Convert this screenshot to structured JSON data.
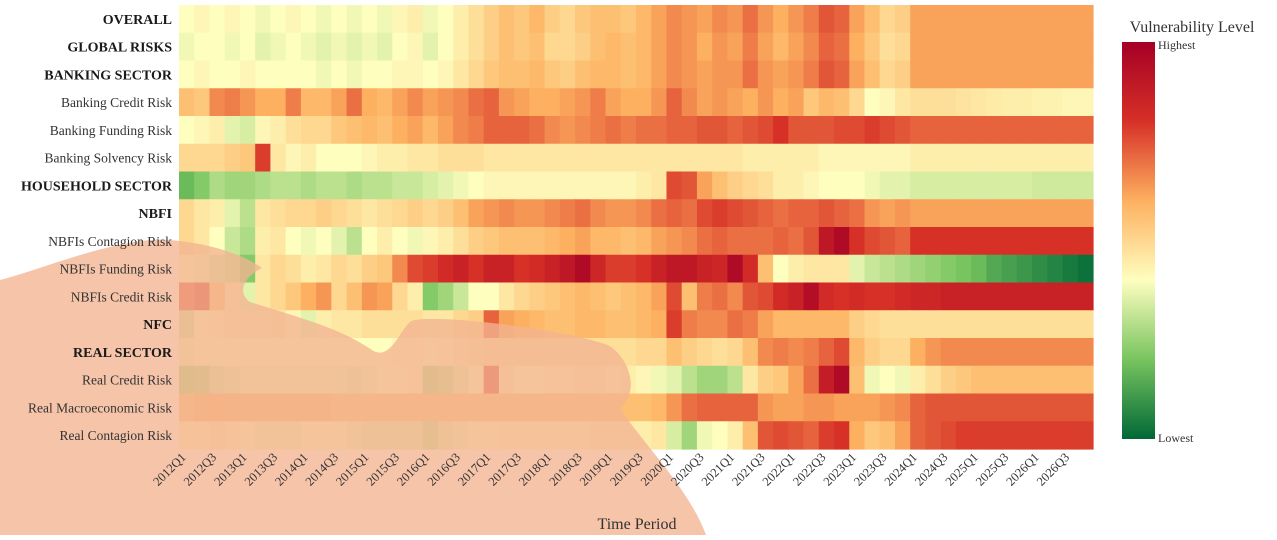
{
  "chart_data": {
    "type": "heatmap",
    "xlabel": "Time Period",
    "legend_title": "Vulnerability Level",
    "legend_high": "Highest",
    "legend_low": "Lowest",
    "value_range": [
      0,
      1
    ],
    "colors": [
      "#006837",
      "#78c45f",
      "#fefebf",
      "#fdb060",
      "#d73027",
      "#a50026"
    ],
    "overlay_color": "#f2b491",
    "rows": [
      {
        "label": "OVERALL",
        "bold": true
      },
      {
        "label": "GLOBAL RISKS",
        "bold": true
      },
      {
        "label": "BANKING SECTOR",
        "bold": true
      },
      {
        "label": "Banking Credit Risk",
        "bold": false
      },
      {
        "label": "Banking Funding Risk",
        "bold": false
      },
      {
        "label": "Banking Solvency Risk",
        "bold": false
      },
      {
        "label": "HOUSEHOLD SECTOR",
        "bold": true
      },
      {
        "label": "NBFI",
        "bold": true
      },
      {
        "label": "NBFIs Contagion Risk",
        "bold": false
      },
      {
        "label": "NBFIs Funding Risk",
        "bold": false
      },
      {
        "label": "NBFIs Credit Risk",
        "bold": false
      },
      {
        "label": "NFC",
        "bold": true
      },
      {
        "label": "REAL SECTOR",
        "bold": true
      },
      {
        "label": "Real Credit Risk",
        "bold": false
      },
      {
        "label": "Real Macroeconomic Risk",
        "bold": false
      },
      {
        "label": "Real Contagion Risk",
        "bold": false
      }
    ],
    "x": [
      "2012Q1",
      "2012Q2",
      "2012Q3",
      "2012Q4",
      "2013Q1",
      "2013Q2",
      "2013Q3",
      "2013Q4",
      "2014Q1",
      "2014Q2",
      "2014Q3",
      "2014Q4",
      "2015Q1",
      "2015Q2",
      "2015Q3",
      "2015Q4",
      "2016Q1",
      "2016Q2",
      "2016Q3",
      "2016Q4",
      "2017Q1",
      "2017Q2",
      "2017Q3",
      "2017Q4",
      "2018Q1",
      "2018Q2",
      "2018Q3",
      "2018Q4",
      "2019Q1",
      "2019Q2",
      "2019Q3",
      "2019Q4",
      "2020Q1",
      "2020Q2",
      "2020Q3",
      "2020Q4",
      "2021Q1",
      "2021Q2",
      "2021Q3",
      "2021Q4",
      "2022Q1",
      "2022Q2",
      "2022Q3",
      "2022Q4",
      "2023Q1",
      "2023Q2",
      "2023Q3",
      "2023Q4",
      "2024Q1",
      "2024Q2",
      "2024Q3",
      "2024Q4",
      "2025Q1",
      "2025Q2",
      "2025Q3",
      "2025Q4",
      "2026Q1",
      "2026Q2",
      "2026Q3",
      "2026Q4"
    ],
    "x_tick_labels": [
      "2012Q1",
      "2012Q3",
      "2013Q1",
      "2013Q3",
      "2014Q1",
      "2014Q3",
      "2015Q1",
      "2015Q3",
      "2016Q1",
      "2016Q3",
      "2017Q1",
      "2017Q3",
      "2018Q1",
      "2018Q3",
      "2019Q1",
      "2019Q3",
      "2020Q1",
      "2020Q3",
      "2021Q1",
      "2021Q3",
      "2022Q1",
      "2022Q3",
      "2023Q1",
      "2023Q3",
      "2024Q1",
      "2024Q3",
      "2025Q1",
      "2025Q3",
      "2026Q1",
      "2026Q3"
    ],
    "values": [
      [
        0.4,
        0.42,
        0.4,
        0.42,
        0.4,
        0.38,
        0.4,
        0.42,
        0.4,
        0.38,
        0.4,
        0.38,
        0.4,
        0.38,
        0.42,
        0.44,
        0.38,
        0.4,
        0.44,
        0.48,
        0.52,
        0.56,
        0.54,
        0.58,
        0.52,
        0.5,
        0.54,
        0.56,
        0.56,
        0.54,
        0.58,
        0.62,
        0.66,
        0.64,
        0.62,
        0.66,
        0.64,
        0.7,
        0.64,
        0.6,
        0.64,
        0.68,
        0.74,
        0.72,
        0.62,
        0.56,
        0.5,
        0.52,
        0.62,
        0.62,
        0.62,
        0.62,
        0.62,
        0.62,
        0.62,
        0.62,
        0.62,
        0.62,
        0.62,
        0.62
      ],
      [
        0.38,
        0.4,
        0.4,
        0.38,
        0.4,
        0.36,
        0.38,
        0.4,
        0.38,
        0.36,
        0.38,
        0.36,
        0.38,
        0.36,
        0.4,
        0.42,
        0.36,
        0.4,
        0.44,
        0.48,
        0.52,
        0.56,
        0.54,
        0.56,
        0.5,
        0.5,
        0.52,
        0.56,
        0.58,
        0.56,
        0.58,
        0.62,
        0.66,
        0.64,
        0.6,
        0.64,
        0.62,
        0.68,
        0.62,
        0.58,
        0.62,
        0.66,
        0.72,
        0.7,
        0.6,
        0.54,
        0.48,
        0.5,
        0.62,
        0.62,
        0.62,
        0.62,
        0.62,
        0.62,
        0.62,
        0.62,
        0.62,
        0.62,
        0.62,
        0.62
      ],
      [
        0.4,
        0.42,
        0.4,
        0.4,
        0.42,
        0.4,
        0.4,
        0.4,
        0.4,
        0.38,
        0.4,
        0.38,
        0.4,
        0.4,
        0.42,
        0.42,
        0.4,
        0.42,
        0.46,
        0.5,
        0.54,
        0.56,
        0.56,
        0.58,
        0.54,
        0.52,
        0.56,
        0.58,
        0.58,
        0.56,
        0.58,
        0.62,
        0.66,
        0.64,
        0.62,
        0.64,
        0.64,
        0.7,
        0.64,
        0.62,
        0.64,
        0.68,
        0.74,
        0.72,
        0.62,
        0.56,
        0.5,
        0.52,
        0.62,
        0.62,
        0.62,
        0.62,
        0.62,
        0.62,
        0.62,
        0.62,
        0.62,
        0.62,
        0.62,
        0.62
      ],
      [
        0.56,
        0.54,
        0.66,
        0.68,
        0.64,
        0.6,
        0.6,
        0.68,
        0.58,
        0.58,
        0.62,
        0.7,
        0.6,
        0.58,
        0.62,
        0.66,
        0.62,
        0.64,
        0.66,
        0.7,
        0.72,
        0.64,
        0.62,
        0.6,
        0.6,
        0.62,
        0.64,
        0.68,
        0.62,
        0.6,
        0.6,
        0.64,
        0.72,
        0.66,
        0.62,
        0.64,
        0.62,
        0.6,
        0.64,
        0.6,
        0.62,
        0.54,
        0.58,
        0.56,
        0.5,
        0.4,
        0.42,
        0.46,
        0.48,
        0.48,
        0.48,
        0.47,
        0.46,
        0.45,
        0.44,
        0.44,
        0.43,
        0.43,
        0.42,
        0.42
      ],
      [
        0.4,
        0.42,
        0.44,
        0.36,
        0.34,
        0.42,
        0.44,
        0.48,
        0.5,
        0.5,
        0.54,
        0.56,
        0.58,
        0.56,
        0.6,
        0.62,
        0.58,
        0.62,
        0.66,
        0.68,
        0.72,
        0.72,
        0.72,
        0.7,
        0.66,
        0.64,
        0.66,
        0.68,
        0.7,
        0.68,
        0.7,
        0.7,
        0.72,
        0.72,
        0.74,
        0.74,
        0.72,
        0.74,
        0.76,
        0.8,
        0.74,
        0.74,
        0.74,
        0.76,
        0.76,
        0.78,
        0.76,
        0.74,
        0.72,
        0.72,
        0.72,
        0.72,
        0.72,
        0.72,
        0.72,
        0.72,
        0.72,
        0.72,
        0.72,
        0.72
      ],
      [
        0.5,
        0.5,
        0.5,
        0.52,
        0.54,
        0.78,
        0.46,
        0.42,
        0.44,
        0.4,
        0.4,
        0.4,
        0.42,
        0.44,
        0.44,
        0.46,
        0.46,
        0.48,
        0.48,
        0.48,
        0.46,
        0.46,
        0.46,
        0.46,
        0.46,
        0.46,
        0.46,
        0.46,
        0.46,
        0.46,
        0.46,
        0.46,
        0.46,
        0.46,
        0.46,
        0.46,
        0.46,
        0.44,
        0.44,
        0.44,
        0.44,
        0.44,
        0.42,
        0.42,
        0.42,
        0.42,
        0.42,
        0.42,
        0.44,
        0.44,
        0.44,
        0.44,
        0.44,
        0.44,
        0.44,
        0.44,
        0.44,
        0.44,
        0.44,
        0.44
      ],
      [
        0.18,
        0.22,
        0.28,
        0.26,
        0.26,
        0.28,
        0.3,
        0.3,
        0.28,
        0.3,
        0.3,
        0.28,
        0.3,
        0.3,
        0.32,
        0.32,
        0.34,
        0.36,
        0.38,
        0.4,
        0.42,
        0.42,
        0.42,
        0.42,
        0.42,
        0.42,
        0.42,
        0.42,
        0.42,
        0.42,
        0.44,
        0.46,
        0.76,
        0.74,
        0.62,
        0.56,
        0.52,
        0.5,
        0.48,
        0.44,
        0.44,
        0.42,
        0.4,
        0.4,
        0.4,
        0.38,
        0.36,
        0.36,
        0.34,
        0.34,
        0.34,
        0.34,
        0.34,
        0.34,
        0.34,
        0.34,
        0.33,
        0.33,
        0.33,
        0.33
      ],
      [
        0.5,
        0.46,
        0.44,
        0.36,
        0.3,
        0.46,
        0.48,
        0.5,
        0.5,
        0.52,
        0.5,
        0.48,
        0.46,
        0.48,
        0.5,
        0.52,
        0.5,
        0.52,
        0.56,
        0.62,
        0.64,
        0.66,
        0.64,
        0.64,
        0.66,
        0.68,
        0.7,
        0.66,
        0.64,
        0.64,
        0.66,
        0.7,
        0.72,
        0.7,
        0.76,
        0.78,
        0.76,
        0.74,
        0.72,
        0.7,
        0.72,
        0.72,
        0.74,
        0.72,
        0.7,
        0.64,
        0.62,
        0.64,
        0.62,
        0.62,
        0.62,
        0.62,
        0.62,
        0.62,
        0.62,
        0.62,
        0.62,
        0.62,
        0.62,
        0.62
      ],
      [
        0.5,
        0.46,
        0.4,
        0.32,
        0.28,
        0.44,
        0.46,
        0.4,
        0.38,
        0.4,
        0.36,
        0.3,
        0.4,
        0.44,
        0.4,
        0.38,
        0.42,
        0.44,
        0.48,
        0.52,
        0.54,
        0.56,
        0.56,
        0.56,
        0.58,
        0.6,
        0.62,
        0.58,
        0.58,
        0.56,
        0.58,
        0.62,
        0.64,
        0.66,
        0.7,
        0.72,
        0.7,
        0.7,
        0.7,
        0.72,
        0.7,
        0.74,
        0.9,
        0.96,
        0.8,
        0.76,
        0.74,
        0.72,
        0.8,
        0.8,
        0.8,
        0.8,
        0.8,
        0.8,
        0.8,
        0.8,
        0.8,
        0.8,
        0.8,
        0.8
      ],
      [
        0.4,
        0.38,
        0.34,
        0.3,
        0.22,
        0.46,
        0.5,
        0.48,
        0.44,
        0.46,
        0.5,
        0.48,
        0.52,
        0.54,
        0.66,
        0.76,
        0.78,
        0.82,
        0.86,
        0.8,
        0.86,
        0.86,
        0.8,
        0.82,
        0.86,
        0.9,
        0.96,
        0.84,
        0.78,
        0.78,
        0.8,
        0.86,
        0.9,
        0.9,
        0.86,
        0.84,
        0.96,
        0.82,
        0.56,
        0.4,
        0.44,
        0.46,
        0.46,
        0.46,
        0.36,
        0.32,
        0.3,
        0.28,
        0.26,
        0.24,
        0.22,
        0.2,
        0.18,
        0.14,
        0.12,
        0.1,
        0.08,
        0.06,
        0.04,
        0.02
      ],
      [
        0.76,
        0.8,
        0.56,
        0.44,
        0.36,
        0.46,
        0.5,
        0.54,
        0.6,
        0.64,
        0.5,
        0.56,
        0.64,
        0.62,
        0.5,
        0.44,
        0.22,
        0.26,
        0.32,
        0.4,
        0.4,
        0.46,
        0.5,
        0.52,
        0.54,
        0.56,
        0.58,
        0.56,
        0.54,
        0.56,
        0.58,
        0.62,
        0.76,
        0.56,
        0.68,
        0.7,
        0.66,
        0.74,
        0.76,
        0.82,
        0.86,
        0.94,
        0.82,
        0.8,
        0.82,
        0.8,
        0.8,
        0.82,
        0.84,
        0.84,
        0.86,
        0.86,
        0.86,
        0.86,
        0.86,
        0.86,
        0.86,
        0.86,
        0.86,
        0.86
      ],
      [
        0.32,
        0.4,
        0.42,
        0.44,
        0.44,
        0.44,
        0.46,
        0.42,
        0.36,
        0.44,
        0.46,
        0.46,
        0.48,
        0.48,
        0.48,
        0.48,
        0.46,
        0.46,
        0.5,
        0.52,
        0.72,
        0.62,
        0.6,
        0.58,
        0.56,
        0.56,
        0.58,
        0.58,
        0.56,
        0.56,
        0.58,
        0.6,
        0.78,
        0.68,
        0.66,
        0.66,
        0.7,
        0.68,
        0.62,
        0.58,
        0.58,
        0.58,
        0.58,
        0.58,
        0.52,
        0.5,
        0.48,
        0.48,
        0.48,
        0.48,
        0.48,
        0.48,
        0.48,
        0.48,
        0.48,
        0.48,
        0.48,
        0.48,
        0.48,
        0.48
      ],
      [
        0.38,
        0.4,
        0.4,
        0.4,
        0.4,
        0.4,
        0.4,
        0.4,
        0.4,
        0.4,
        0.4,
        0.4,
        0.4,
        0.4,
        0.42,
        0.42,
        0.4,
        0.42,
        0.44,
        0.46,
        0.48,
        0.48,
        0.48,
        0.48,
        0.48,
        0.48,
        0.48,
        0.48,
        0.48,
        0.48,
        0.5,
        0.5,
        0.56,
        0.52,
        0.5,
        0.48,
        0.5,
        0.56,
        0.66,
        0.68,
        0.66,
        0.68,
        0.72,
        0.76,
        0.58,
        0.52,
        0.5,
        0.5,
        0.6,
        0.64,
        0.66,
        0.66,
        0.66,
        0.66,
        0.66,
        0.66,
        0.66,
        0.66,
        0.66,
        0.66
      ],
      [
        0.26,
        0.28,
        0.34,
        0.36,
        0.38,
        0.38,
        0.38,
        0.38,
        0.38,
        0.38,
        0.38,
        0.36,
        0.38,
        0.4,
        0.4,
        0.42,
        0.28,
        0.3,
        0.36,
        0.4,
        0.78,
        0.44,
        0.4,
        0.4,
        0.42,
        0.42,
        0.44,
        0.44,
        0.42,
        0.44,
        0.42,
        0.38,
        0.36,
        0.3,
        0.26,
        0.26,
        0.3,
        0.46,
        0.52,
        0.54,
        0.62,
        0.7,
        0.88,
        0.96,
        0.56,
        0.38,
        0.4,
        0.38,
        0.44,
        0.48,
        0.52,
        0.54,
        0.56,
        0.56,
        0.56,
        0.56,
        0.56,
        0.56,
        0.56,
        0.56
      ],
      [
        0.56,
        0.58,
        0.6,
        0.58,
        0.58,
        0.58,
        0.58,
        0.58,
        0.58,
        0.58,
        0.56,
        0.56,
        0.56,
        0.56,
        0.56,
        0.56,
        0.56,
        0.56,
        0.56,
        0.56,
        0.56,
        0.56,
        0.56,
        0.56,
        0.56,
        0.56,
        0.56,
        0.56,
        0.56,
        0.56,
        0.56,
        0.58,
        0.64,
        0.7,
        0.72,
        0.72,
        0.72,
        0.72,
        0.64,
        0.62,
        0.62,
        0.64,
        0.64,
        0.62,
        0.62,
        0.62,
        0.64,
        0.66,
        0.72,
        0.74,
        0.74,
        0.74,
        0.74,
        0.74,
        0.74,
        0.74,
        0.74,
        0.74,
        0.74,
        0.74
      ],
      [
        0.42,
        0.42,
        0.44,
        0.42,
        0.4,
        0.38,
        0.38,
        0.38,
        0.4,
        0.4,
        0.4,
        0.38,
        0.36,
        0.36,
        0.36,
        0.36,
        0.3,
        0.36,
        0.38,
        0.4,
        0.4,
        0.42,
        0.42,
        0.42,
        0.42,
        0.42,
        0.42,
        0.44,
        0.44,
        0.44,
        0.44,
        0.46,
        0.34,
        0.26,
        0.38,
        0.4,
        0.44,
        0.56,
        0.74,
        0.76,
        0.74,
        0.72,
        0.78,
        0.8,
        0.6,
        0.54,
        0.56,
        0.62,
        0.72,
        0.74,
        0.76,
        0.78,
        0.78,
        0.78,
        0.78,
        0.78,
        0.78,
        0.78,
        0.78,
        0.78
      ]
    ]
  }
}
